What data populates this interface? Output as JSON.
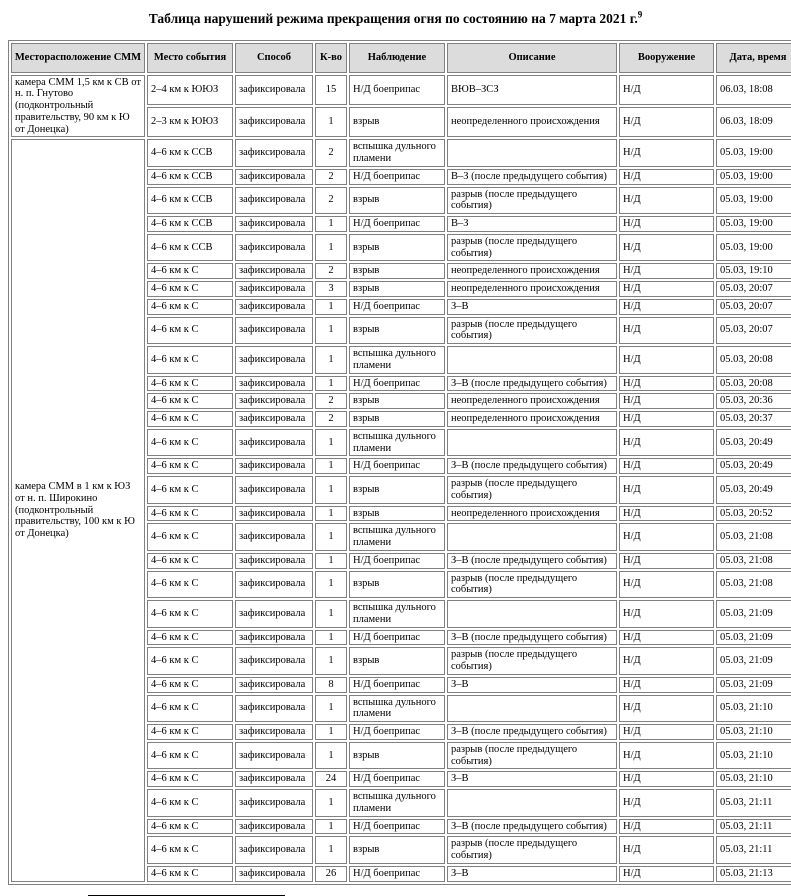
{
  "title": {
    "text": "Таблица нарушений режима прекращения огня по состоянию на 7 марта 2021 г.",
    "footnote_mark": "9"
  },
  "colors": {
    "header_bg": "#dcdcdc",
    "border": "#808080",
    "text": "#000000"
  },
  "table": {
    "headers": [
      "Месторасположение СММ",
      "Место события",
      "Способ",
      "К-во",
      "Наблюдение",
      "Описание",
      "Вооружение",
      "Дата, время"
    ],
    "groups": [
      {
        "location": "камера СММ 1,5 км к СВ от н. п. Гнутово (подконтрольный правительству, 90 км к Ю от Донецка)",
        "rows": [
          {
            "place": "2–4 км к ЮЮЗ",
            "method": "зафиксировала",
            "count": "15",
            "observation": "Н/Д боеприпас",
            "description": "ВЮВ–ЗСЗ",
            "weapon": "Н/Д",
            "datetime": "06.03, 18:08"
          },
          {
            "place": "2–3 км к ЮЮЗ",
            "method": "зафиксировала",
            "count": "1",
            "observation": "взрыв",
            "description": "неопределенного происхождения",
            "weapon": "Н/Д",
            "datetime": "06.03, 18:09"
          }
        ]
      },
      {
        "location": "камера СММ в 1 км к ЮЗ от н. п. Широкино (подконтрольный правительству, 100 км к Ю от Донецка)",
        "rows": [
          {
            "place": "4–6 км к ССВ",
            "method": "зафиксировала",
            "count": "2",
            "observation": "вспышка дульного пламени",
            "description": "",
            "weapon": "Н/Д",
            "datetime": "05.03, 19:00"
          },
          {
            "place": "4–6 км к ССВ",
            "method": "зафиксировала",
            "count": "2",
            "observation": "Н/Д боеприпас",
            "description": "В–З (после предыдущего события)",
            "weapon": "Н/Д",
            "datetime": "05.03, 19:00"
          },
          {
            "place": "4–6 км к ССВ",
            "method": "зафиксировала",
            "count": "2",
            "observation": "взрыв",
            "description": "разрыв (после предыдущего события)",
            "weapon": "Н/Д",
            "datetime": "05.03, 19:00"
          },
          {
            "place": "4–6 км к ССВ",
            "method": "зафиксировала",
            "count": "1",
            "observation": "Н/Д боеприпас",
            "description": "В–З",
            "weapon": "Н/Д",
            "datetime": "05.03, 19:00"
          },
          {
            "place": "4–6 км к ССВ",
            "method": "зафиксировала",
            "count": "1",
            "observation": "взрыв",
            "description": "разрыв (после предыдущего события)",
            "weapon": "Н/Д",
            "datetime": "05.03, 19:00"
          },
          {
            "place": "4–6 км к С",
            "method": "зафиксировала",
            "count": "2",
            "observation": "взрыв",
            "description": "неопределенного происхождения",
            "weapon": "Н/Д",
            "datetime": "05.03, 19:10"
          },
          {
            "place": "4–6 км к С",
            "method": "зафиксировала",
            "count": "3",
            "observation": "взрыв",
            "description": "неопределенного происхождения",
            "weapon": "Н/Д",
            "datetime": "05.03, 20:07"
          },
          {
            "place": "4–6 км к С",
            "method": "зафиксировала",
            "count": "1",
            "observation": "Н/Д боеприпас",
            "description": "З–В",
            "weapon": "Н/Д",
            "datetime": "05.03, 20:07"
          },
          {
            "place": "4–6 км к С",
            "method": "зафиксировала",
            "count": "1",
            "observation": "взрыв",
            "description": "разрыв (после предыдущего события)",
            "weapon": "Н/Д",
            "datetime": "05.03, 20:07"
          },
          {
            "place": "4–6 км к С",
            "method": "зафиксировала",
            "count": "1",
            "observation": "вспышка дульного пламени",
            "description": "",
            "weapon": "Н/Д",
            "datetime": "05.03, 20:08"
          },
          {
            "place": "4–6 км к С",
            "method": "зафиксировала",
            "count": "1",
            "observation": "Н/Д боеприпас",
            "description": "З–В (после предыдущего события)",
            "weapon": "Н/Д",
            "datetime": "05.03, 20:08"
          },
          {
            "place": "4–6 км к С",
            "method": "зафиксировала",
            "count": "2",
            "observation": "взрыв",
            "description": "неопределенного происхождения",
            "weapon": "Н/Д",
            "datetime": "05.03, 20:36"
          },
          {
            "place": "4–6 км к С",
            "method": "зафиксировала",
            "count": "2",
            "observation": "взрыв",
            "description": "неопределенного происхождения",
            "weapon": "Н/Д",
            "datetime": "05.03, 20:37"
          },
          {
            "place": "4–6 км к С",
            "method": "зафиксировала",
            "count": "1",
            "observation": "вспышка дульного пламени",
            "description": "",
            "weapon": "Н/Д",
            "datetime": "05.03, 20:49"
          },
          {
            "place": "4–6 км к С",
            "method": "зафиксировала",
            "count": "1",
            "observation": "Н/Д боеприпас",
            "description": "З–В (после предыдущего события)",
            "weapon": "Н/Д",
            "datetime": "05.03, 20:49"
          },
          {
            "place": "4–6 км к С",
            "method": "зафиксировала",
            "count": "1",
            "observation": "взрыв",
            "description": "разрыв (после предыдущего события)",
            "weapon": "Н/Д",
            "datetime": "05.03, 20:49"
          },
          {
            "place": "4–6 км к С",
            "method": "зафиксировала",
            "count": "1",
            "observation": "взрыв",
            "description": "неопределенного происхождения",
            "weapon": "Н/Д",
            "datetime": "05.03, 20:52"
          },
          {
            "place": "4–6 км к С",
            "method": "зафиксировала",
            "count": "1",
            "observation": "вспышка дульного пламени",
            "description": "",
            "weapon": "Н/Д",
            "datetime": "05.03, 21:08"
          },
          {
            "place": "4–6 км к С",
            "method": "зафиксировала",
            "count": "1",
            "observation": "Н/Д боеприпас",
            "description": "З–В (после предыдущего события)",
            "weapon": "Н/Д",
            "datetime": "05.03, 21:08"
          },
          {
            "place": "4–6 км к С",
            "method": "зафиксировала",
            "count": "1",
            "observation": "взрыв",
            "description": "разрыв (после предыдущего события)",
            "weapon": "Н/Д",
            "datetime": "05.03, 21:08"
          },
          {
            "place": "4–6 км к С",
            "method": "зафиксировала",
            "count": "1",
            "observation": "вспышка дульного пламени",
            "description": "",
            "weapon": "Н/Д",
            "datetime": "05.03, 21:09"
          },
          {
            "place": "4–6 км к С",
            "method": "зафиксировала",
            "count": "1",
            "observation": "Н/Д боеприпас",
            "description": "З–В (после предыдущего события)",
            "weapon": "Н/Д",
            "datetime": "05.03, 21:09"
          },
          {
            "place": "4–6 км к С",
            "method": "зафиксировала",
            "count": "1",
            "observation": "взрыв",
            "description": "разрыв (после предыдущего события)",
            "weapon": "Н/Д",
            "datetime": "05.03, 21:09"
          },
          {
            "place": "4–6 км к С",
            "method": "зафиксировала",
            "count": "8",
            "observation": "Н/Д боеприпас",
            "description": "З–В",
            "weapon": "Н/Д",
            "datetime": "05.03, 21:09"
          },
          {
            "place": "4–6 км к С",
            "method": "зафиксировала",
            "count": "1",
            "observation": "вспышка дульного пламени",
            "description": "",
            "weapon": "Н/Д",
            "datetime": "05.03, 21:10"
          },
          {
            "place": "4–6 км к С",
            "method": "зафиксировала",
            "count": "1",
            "observation": "Н/Д боеприпас",
            "description": "З–В (после предыдущего события)",
            "weapon": "Н/Д",
            "datetime": "05.03, 21:10"
          },
          {
            "place": "4–6 км к С",
            "method": "зафиксировала",
            "count": "1",
            "observation": "взрыв",
            "description": "разрыв (после предыдущего события)",
            "weapon": "Н/Д",
            "datetime": "05.03, 21:10"
          },
          {
            "place": "4–6 км к С",
            "method": "зафиксировала",
            "count": "24",
            "observation": "Н/Д боеприпас",
            "description": "З–В",
            "weapon": "Н/Д",
            "datetime": "05.03, 21:10"
          },
          {
            "place": "4–6 км к С",
            "method": "зафиксировала",
            "count": "1",
            "observation": "вспышка дульного пламени",
            "description": "",
            "weapon": "Н/Д",
            "datetime": "05.03, 21:11"
          },
          {
            "place": "4–6 км к С",
            "method": "зафиксировала",
            "count": "1",
            "observation": "Н/Д боеприпас",
            "description": "З–В (после предыдущего события)",
            "weapon": "Н/Д",
            "datetime": "05.03, 21:11"
          },
          {
            "place": "4–6 км к С",
            "method": "зафиксировала",
            "count": "1",
            "observation": "взрыв",
            "description": "разрыв (после предыдущего события)",
            "weapon": "Н/Д",
            "datetime": "05.03, 21:11"
          },
          {
            "place": "4–6 км к С",
            "method": "зафиксировала",
            "count": "26",
            "observation": "Н/Д боеприпас",
            "description": "З–В",
            "weapon": "Н/Д",
            "datetime": "05.03, 21:13"
          }
        ]
      }
    ]
  }
}
